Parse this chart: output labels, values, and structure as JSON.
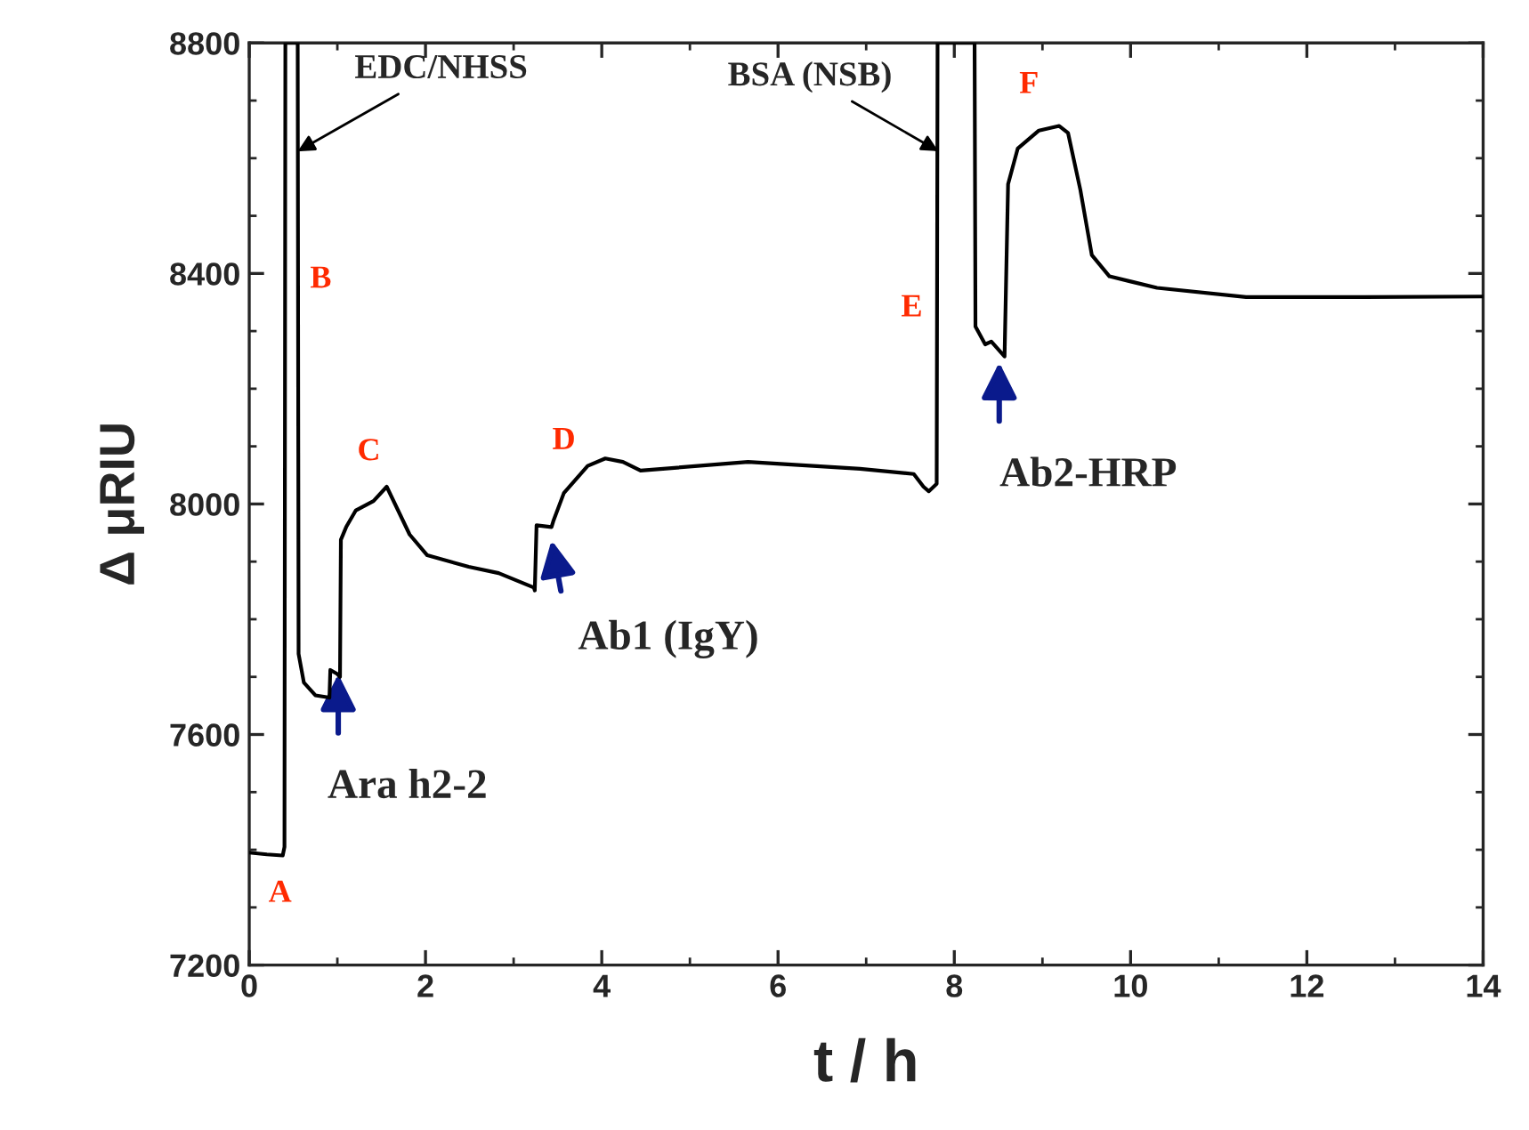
{
  "chart_data": {
    "type": "line",
    "xlabel": "t / h",
    "ylabel": "Δ μRIU",
    "x": [
      0,
      0.2,
      0.38,
      0.4,
      0.41,
      0.55,
      0.56,
      0.62,
      0.75,
      0.91,
      0.92,
      1.0,
      1.03,
      1.04,
      1.1,
      1.21,
      1.41,
      1.56,
      1.82,
      2.02,
      2.49,
      2.83,
      3.23,
      3.24,
      3.26,
      3.43,
      3.45,
      3.57,
      3.84,
      4.04,
      4.24,
      4.44,
      5.66,
      6.93,
      7.54,
      7.65,
      7.71,
      7.8,
      7.81,
      8.23,
      8.24,
      8.35,
      8.42,
      8.57,
      8.61,
      8.72,
      8.96,
      9.19,
      9.29,
      9.43,
      9.56,
      9.76,
      10.3,
      11.31,
      12.66,
      14
    ],
    "series": [
      {
        "color": "#000000",
        "values": [
          7395,
          7392,
          7390,
          7405,
          8800,
          8800,
          7740,
          7690,
          7668,
          7664,
          7712,
          7705,
          7700,
          7938,
          7960,
          7989,
          8005,
          8030,
          7947,
          7911,
          7891,
          7880,
          7855,
          7850,
          7963,
          7960,
          7970,
          8019,
          8066,
          8079,
          8073,
          8058,
          8073,
          8061,
          8052,
          8030,
          8022,
          8035,
          8800,
          8800,
          8308,
          8277,
          8282,
          8256,
          8555,
          8617,
          8648,
          8656,
          8644,
          8545,
          8432,
          8395,
          8375,
          8359,
          8359,
          8360
        ]
      }
    ],
    "xlim": [
      0,
      14
    ],
    "xticks": [
      0,
      2,
      4,
      6,
      8,
      10,
      12,
      14
    ],
    "ylim": [
      7200,
      8800
    ],
    "yticks": [
      7200,
      7600,
      8000,
      8400,
      8800
    ],
    "grid": false,
    "legend": false,
    "marker": "none",
    "line_style": "solid",
    "annotations": [
      "A",
      "B",
      "C",
      "D",
      "E",
      "F",
      {
        "text": "EDC/NHSS",
        "x": 0.55,
        "y": 8612
      },
      {
        "text": "BSA (NSB)",
        "x": 7.82,
        "y": 8612
      },
      {
        "text": "Ara h2-2",
        "x": 1.01,
        "y": 7722
      },
      {
        "text": "Ab1 (IgY)",
        "x": 3.41,
        "y": 7954
      },
      {
        "text": "Ab2-HRP",
        "x": 8.51,
        "y": 8263
      }
    ]
  }
}
